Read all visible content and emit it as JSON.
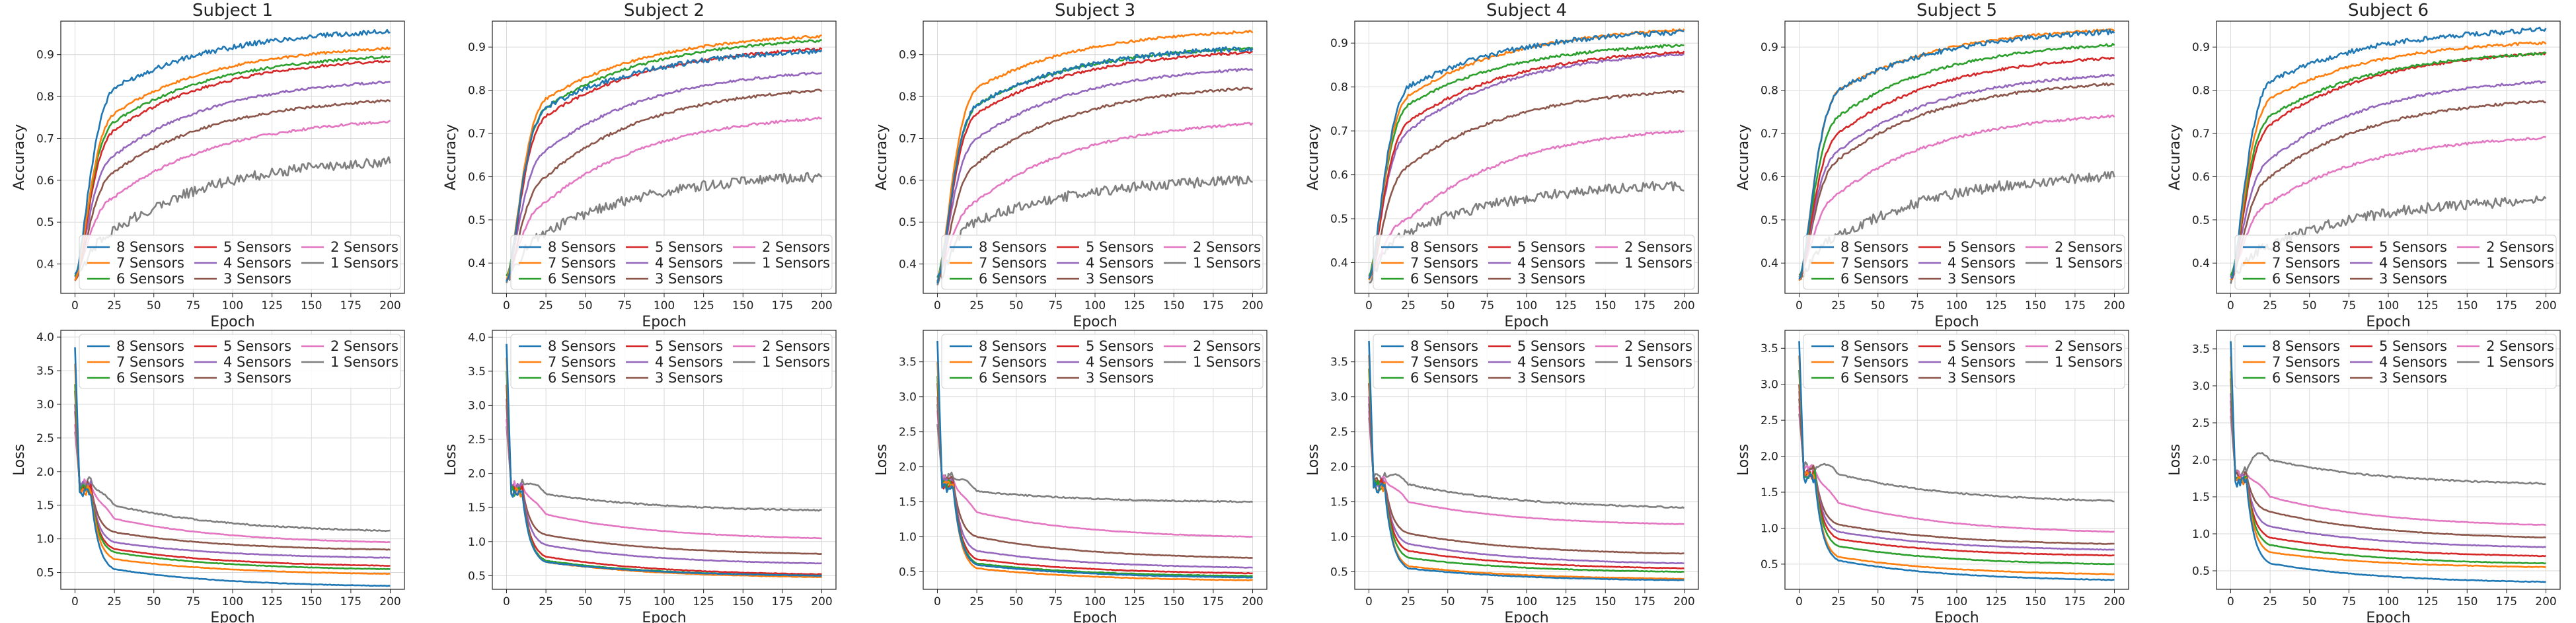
{
  "chart_data": {
    "type": "line",
    "x_label": "Epoch",
    "x_range": [
      0,
      200
    ],
    "x_ticks": [
      0,
      25,
      50,
      75,
      100,
      125,
      150,
      175,
      200
    ],
    "grid": true,
    "legend_placement": "accuracy: lower-right, loss: upper-right",
    "series_names": [
      "8 Sensors",
      "7 Sensors",
      "6 Sensors",
      "5 Sensors",
      "4 Sensors",
      "3 Sensors",
      "2 Sensors",
      "1 Sensors"
    ],
    "series_colors": [
      "#1f77b4",
      "#ff7f0e",
      "#2ca02c",
      "#d62728",
      "#9467bd",
      "#8c564b",
      "#e377c2",
      "#7f7f7f"
    ],
    "subjects": [
      {
        "title": "Subject 1",
        "accuracy": {
          "ylabel": "Accuracy",
          "ylim": [
            0.33,
            0.98
          ],
          "yticks": [
            0.4,
            0.5,
            0.6,
            0.7,
            0.8,
            0.9
          ],
          "start": [
            0.37,
            0.36,
            0.37,
            0.36,
            0.37,
            0.36,
            0.37,
            0.36
          ],
          "final": [
            0.955,
            0.915,
            0.895,
            0.885,
            0.835,
            0.79,
            0.74,
            0.645
          ],
          "e25": [
            0.82,
            0.76,
            0.74,
            0.72,
            0.66,
            0.62,
            0.56,
            0.48
          ]
        },
        "loss": {
          "ylabel": "Loss",
          "ylim": [
            0.25,
            4.1
          ],
          "yticks": [
            0.5,
            1.0,
            1.5,
            2.0,
            2.5,
            3.0,
            3.5,
            4.0
          ],
          "start": [
            3.85,
            3.6,
            3.3,
            3.2,
            3.0,
            2.9,
            2.7,
            2.6
          ],
          "final": [
            0.3,
            0.48,
            0.55,
            0.6,
            0.72,
            0.84,
            0.95,
            1.12
          ],
          "e25": [
            0.55,
            0.7,
            0.8,
            0.85,
            0.95,
            1.1,
            1.3,
            1.5
          ]
        }
      },
      {
        "title": "Subject 2",
        "accuracy": {
          "ylabel": "Accuracy",
          "ylim": [
            0.33,
            0.96
          ],
          "yticks": [
            0.4,
            0.5,
            0.6,
            0.7,
            0.8,
            0.9
          ],
          "start": [
            0.36,
            0.36,
            0.37,
            0.36,
            0.37,
            0.36,
            0.37,
            0.36
          ],
          "final": [
            0.89,
            0.925,
            0.915,
            0.895,
            0.84,
            0.8,
            0.735,
            0.6
          ],
          "e25": [
            0.76,
            0.78,
            0.76,
            0.74,
            0.66,
            0.6,
            0.54,
            0.47
          ]
        },
        "loss": {
          "ylabel": "Loss",
          "ylim": [
            0.3,
            4.1
          ],
          "yticks": [
            0.5,
            1.0,
            1.5,
            2.0,
            2.5,
            3.0,
            3.5,
            4.0
          ],
          "start": [
            3.9,
            3.7,
            3.5,
            3.3,
            3.1,
            3.0,
            2.8,
            2.7
          ],
          "final": [
            0.5,
            0.48,
            0.5,
            0.52,
            0.68,
            0.82,
            1.05,
            1.46
          ],
          "e25": [
            0.7,
            0.7,
            0.72,
            0.78,
            0.95,
            1.1,
            1.4,
            1.7
          ]
        }
      },
      {
        "title": "Subject 3",
        "accuracy": {
          "ylabel": "Accuracy",
          "ylim": [
            0.33,
            0.98
          ],
          "yticks": [
            0.4,
            0.5,
            0.6,
            0.7,
            0.8,
            0.9
          ],
          "start": [
            0.36,
            0.36,
            0.37,
            0.36,
            0.37,
            0.36,
            0.37,
            0.36
          ],
          "final": [
            0.915,
            0.955,
            0.915,
            0.905,
            0.865,
            0.82,
            0.735,
            0.6
          ],
          "e25": [
            0.78,
            0.82,
            0.78,
            0.76,
            0.7,
            0.64,
            0.55,
            0.5
          ]
        },
        "loss": {
          "ylabel": "Loss",
          "ylim": [
            0.25,
            3.95
          ],
          "yticks": [
            0.5,
            1.0,
            1.5,
            2.0,
            2.5,
            3.0,
            3.5
          ],
          "start": [
            3.8,
            3.5,
            3.3,
            3.2,
            3.0,
            2.9,
            2.8,
            2.6
          ],
          "final": [
            0.42,
            0.38,
            0.44,
            0.48,
            0.56,
            0.7,
            1.0,
            1.5
          ],
          "e25": [
            0.6,
            0.55,
            0.62,
            0.68,
            0.8,
            1.0,
            1.35,
            1.65
          ]
        }
      },
      {
        "title": "Subject 4",
        "accuracy": {
          "ylabel": "Accuracy",
          "ylim": [
            0.33,
            0.95
          ],
          "yticks": [
            0.4,
            0.5,
            0.6,
            0.7,
            0.8,
            0.9
          ],
          "start": [
            0.36,
            0.36,
            0.37,
            0.36,
            0.37,
            0.36,
            0.37,
            0.36
          ],
          "final": [
            0.925,
            0.93,
            0.895,
            0.88,
            0.875,
            0.79,
            0.7,
            0.575
          ],
          "e25": [
            0.8,
            0.78,
            0.76,
            0.72,
            0.7,
            0.62,
            0.5,
            0.47
          ]
        },
        "loss": {
          "ylabel": "Loss",
          "ylim": [
            0.25,
            3.95
          ],
          "yticks": [
            0.5,
            1.0,
            1.5,
            2.0,
            2.5,
            3.0,
            3.5
          ],
          "start": [
            3.8,
            3.6,
            3.4,
            3.2,
            3.0,
            2.9,
            2.8,
            2.7
          ],
          "final": [
            0.38,
            0.4,
            0.5,
            0.55,
            0.62,
            0.76,
            1.18,
            1.42
          ],
          "e25": [
            0.55,
            0.58,
            0.7,
            0.8,
            0.9,
            1.05,
            1.5,
            1.75
          ]
        }
      },
      {
        "title": "Subject 5",
        "accuracy": {
          "ylabel": "Accuracy",
          "ylim": [
            0.33,
            0.96
          ],
          "yticks": [
            0.4,
            0.5,
            0.6,
            0.7,
            0.8,
            0.9
          ],
          "start": [
            0.36,
            0.36,
            0.37,
            0.36,
            0.37,
            0.36,
            0.37,
            0.36
          ],
          "final": [
            0.935,
            0.94,
            0.905,
            0.875,
            0.835,
            0.815,
            0.74,
            0.6
          ],
          "e25": [
            0.8,
            0.8,
            0.74,
            0.7,
            0.66,
            0.64,
            0.56,
            0.46
          ]
        },
        "loss": {
          "ylabel": "Loss",
          "ylim": [
            0.15,
            3.75
          ],
          "yticks": [
            0.5,
            1.0,
            1.5,
            2.0,
            2.5,
            3.0,
            3.5
          ],
          "start": [
            3.6,
            3.4,
            3.2,
            3.0,
            2.9,
            2.8,
            2.7,
            2.6
          ],
          "final": [
            0.28,
            0.36,
            0.5,
            0.62,
            0.7,
            0.78,
            0.95,
            1.38
          ],
          "e25": [
            0.55,
            0.6,
            0.75,
            0.85,
            0.95,
            1.05,
            1.35,
            1.75
          ]
        }
      },
      {
        "title": "Subject 6",
        "accuracy": {
          "ylabel": "Accuracy",
          "ylim": [
            0.33,
            0.96
          ],
          "yticks": [
            0.4,
            0.5,
            0.6,
            0.7,
            0.8,
            0.9
          ],
          "start": [
            0.36,
            0.36,
            0.37,
            0.36,
            0.37,
            0.36,
            0.37,
            0.36
          ],
          "final": [
            0.94,
            0.91,
            0.885,
            0.885,
            0.82,
            0.775,
            0.69,
            0.545
          ],
          "e25": [
            0.82,
            0.78,
            0.74,
            0.72,
            0.64,
            0.6,
            0.54,
            0.44
          ]
        },
        "loss": {
          "ylabel": "Loss",
          "ylim": [
            0.25,
            3.75
          ],
          "yticks": [
            0.5,
            1.0,
            1.5,
            2.0,
            2.5,
            3.0,
            3.5
          ],
          "start": [
            3.6,
            3.4,
            3.2,
            3.1,
            2.9,
            2.8,
            2.7,
            2.6
          ],
          "final": [
            0.35,
            0.55,
            0.6,
            0.7,
            0.82,
            0.95,
            1.12,
            1.68
          ],
          "e25": [
            0.6,
            0.75,
            0.85,
            0.95,
            1.1,
            1.3,
            1.5,
            2.0
          ]
        }
      }
    ]
  }
}
